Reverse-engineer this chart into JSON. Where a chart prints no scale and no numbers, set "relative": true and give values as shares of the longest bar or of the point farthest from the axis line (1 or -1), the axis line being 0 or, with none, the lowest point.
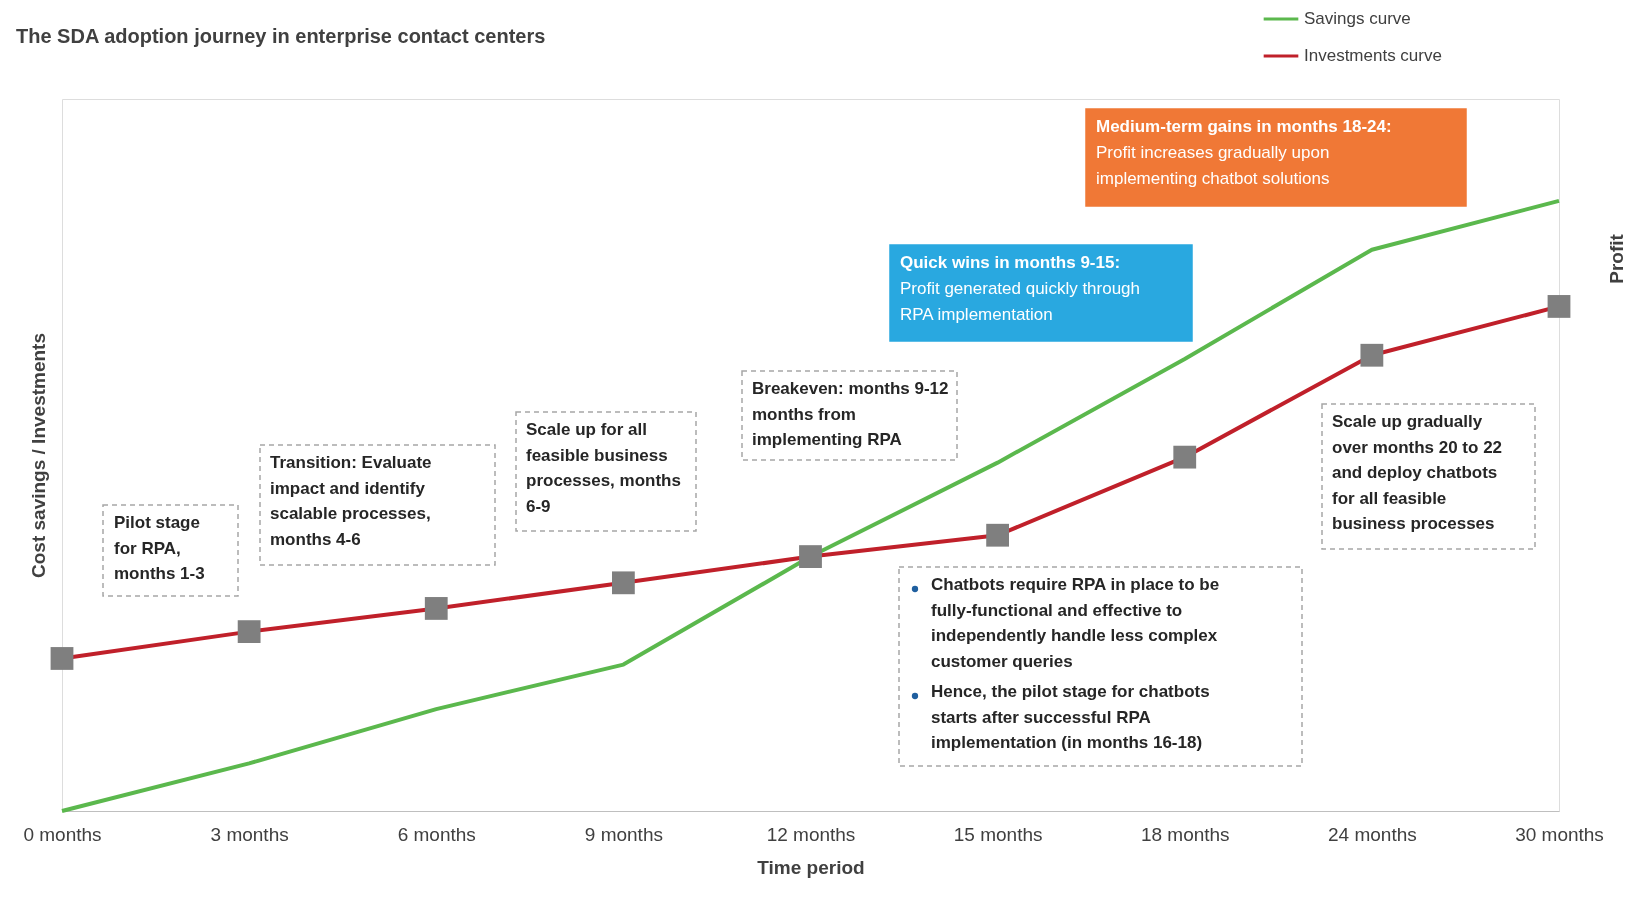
{
  "chart_data": {
    "type": "line",
    "title": "The SDA adoption journey in enterprise contact centers",
    "xlabel": "Time period",
    "ylabel": "Cost savings / Investments",
    "relative": true,
    "categories": [
      "0 months",
      "3 months",
      "6 months",
      "9 months",
      "12 months",
      "15 months",
      "18 months",
      "24 months",
      "30 months"
    ],
    "series": [
      {
        "name": "Savings curve",
        "color": "#5bb84d",
        "values": [
          0,
          0.078,
          0.167,
          0.24,
          0.417,
          0.571,
          0.741,
          0.92,
          1
        ],
        "marker": "none"
      },
      {
        "name": "Investments curve",
        "color": "#c0202a",
        "values": [
          0.25,
          0.294,
          0.332,
          0.374,
          0.417,
          0.452,
          0.58,
          0.747,
          0.827
        ],
        "marker": "square"
      }
    ],
    "legend": "top right",
    "grid": false,
    "line_style": "solid",
    "annotations": [
      "Pilot stage for RPA, months 1-3",
      "Transition: Evaluate impact and identify scalable processes, months 4-6",
      "Scale up for all feasible business processes, months 6-9",
      "Breakeven: months 9-12 months from implementing RPA",
      "Quick wins in months 9-15:",
      "Profit generated quickly through RPA implementation",
      "Medium-term gains in months 18-24:",
      "Profit increases gradually upon implementing chatbot solutions",
      "Chatbots require RPA in place to be fully-functional and effective to independently handle less complex customer queries",
      "Hence, the pilot stage for chatbots starts after successful RPA implementation (in months 16-18)",
      "Scale up gradually over months 20 to 22 and deploy chatbots for all feasible business processes",
      "Profit"
    ]
  }
}
